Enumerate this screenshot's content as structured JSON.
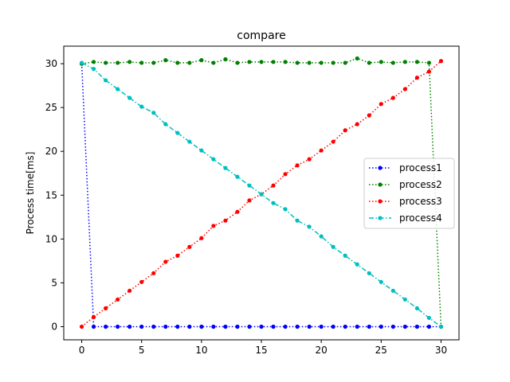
{
  "chart_data": {
    "type": "line",
    "title": "compare",
    "xlabel": "",
    "ylabel": "Process time[ms]",
    "xlim": [
      -1.5,
      31.5
    ],
    "ylim": [
      -1.5,
      32.0
    ],
    "xticks": [
      0,
      5,
      10,
      15,
      20,
      25,
      30
    ],
    "yticks": [
      0,
      5,
      10,
      15,
      20,
      25,
      30
    ],
    "grid": false,
    "legend_position": "center-right",
    "x": [
      0,
      1,
      2,
      3,
      4,
      5,
      6,
      7,
      8,
      9,
      10,
      11,
      12,
      13,
      14,
      15,
      16,
      17,
      18,
      19,
      20,
      21,
      22,
      23,
      24,
      25,
      26,
      27,
      28,
      29,
      30
    ],
    "series": [
      {
        "name": "process1",
        "color": "#0000ff",
        "linestyle": "dotted",
        "marker": "circle",
        "values": [
          30,
          0,
          0,
          0,
          0,
          0,
          0,
          0,
          0,
          0,
          0,
          0,
          0,
          0,
          0,
          0,
          0,
          0,
          0,
          0,
          0,
          0,
          0,
          0,
          0,
          0,
          0,
          0,
          0,
          0,
          0
        ]
      },
      {
        "name": "process2",
        "color": "#008000",
        "linestyle": "dotted",
        "marker": "circle",
        "values": [
          30,
          30.2,
          30.1,
          30.1,
          30.2,
          30.1,
          30.1,
          30.4,
          30.1,
          30.1,
          30.4,
          30.1,
          30.5,
          30.1,
          30.2,
          30.2,
          30.2,
          30.2,
          30.1,
          30.1,
          30.1,
          30.1,
          30.1,
          30.6,
          30.1,
          30.2,
          30.1,
          30.2,
          30.2,
          30.1,
          0
        ]
      },
      {
        "name": "process3",
        "color": "#ff0000",
        "linestyle": "dotted",
        "marker": "circle",
        "values": [
          0,
          1.1,
          2.1,
          3.1,
          4.1,
          5.1,
          6.1,
          7.4,
          8.1,
          9.1,
          10.1,
          11.5,
          12.1,
          13.1,
          14.4,
          15.1,
          16.1,
          17.4,
          18.4,
          19.1,
          20.1,
          21.1,
          22.4,
          23.1,
          24.1,
          25.4,
          26.1,
          27.1,
          28.4,
          29.1,
          30.3
        ]
      },
      {
        "name": "process4",
        "color": "#00bfbf",
        "linestyle": "dashdot",
        "marker": "circle",
        "values": [
          30.1,
          29.4,
          28.1,
          27.1,
          26.1,
          25.1,
          24.4,
          23.1,
          22.1,
          21.1,
          20.1,
          19.1,
          18.1,
          17.1,
          16.1,
          15.1,
          14.1,
          13.4,
          12.1,
          11.4,
          10.3,
          9.1,
          8.1,
          7.1,
          6.1,
          5.1,
          4.1,
          3.1,
          2.1,
          1.0,
          0
        ]
      }
    ]
  }
}
